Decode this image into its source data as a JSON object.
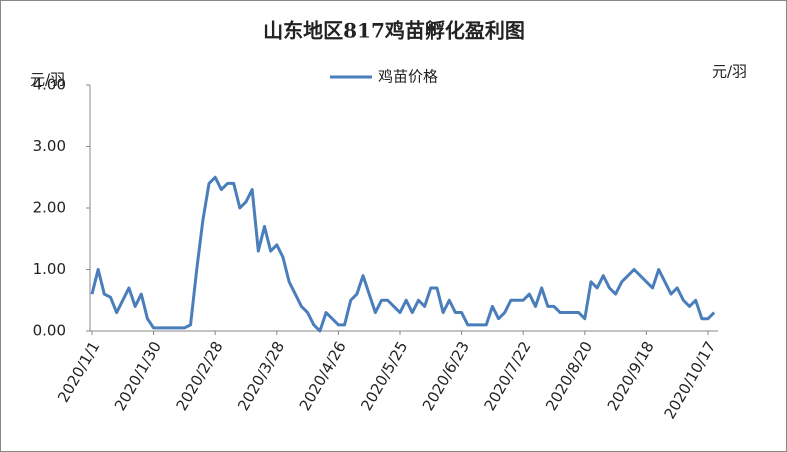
{
  "chart_data": {
    "type": "line",
    "title": "山东地区817鸡苗孵化盈利图",
    "ylabel": "元/羽",
    "y2label": "元/羽",
    "categories": [
      "2020/1/1",
      null,
      null,
      null,
      null,
      null,
      null,
      null,
      null,
      null,
      "2020/1/30",
      null,
      null,
      null,
      null,
      null,
      null,
      null,
      null,
      null,
      "2020/2/28",
      null,
      null,
      null,
      null,
      null,
      null,
      null,
      null,
      null,
      "2020/3/28",
      null,
      null,
      null,
      null,
      null,
      null,
      null,
      null,
      null,
      "2020/4/26",
      null,
      null,
      null,
      null,
      null,
      null,
      null,
      null,
      null,
      "2020/5/25",
      null,
      null,
      null,
      null,
      null,
      null,
      null,
      null,
      null,
      "2020/6/23",
      null,
      null,
      null,
      null,
      null,
      null,
      null,
      null,
      null,
      "2020/7/22",
      null,
      null,
      null,
      null,
      null,
      null,
      null,
      null,
      null,
      "2020/8/20",
      null,
      null,
      null,
      null,
      null,
      null,
      null,
      null,
      null,
      "2020/9/18",
      null,
      null,
      null,
      null,
      null,
      null,
      null,
      null,
      null,
      "2020/10/17",
      null
    ],
    "series": [
      {
        "name": "鸡苗价格",
        "color": "#4a7ebb",
        "values": [
          0.6,
          1.0,
          0.6,
          0.55,
          0.3,
          0.5,
          0.7,
          0.4,
          0.6,
          0.2,
          0.05,
          0.05,
          0.05,
          0.05,
          0.05,
          0.05,
          0.1,
          1.0,
          1.8,
          2.4,
          2.5,
          2.3,
          2.4,
          2.4,
          2.0,
          2.1,
          2.3,
          1.3,
          1.7,
          1.3,
          1.4,
          1.2,
          0.8,
          0.6,
          0.4,
          0.3,
          0.1,
          0.0,
          0.3,
          0.2,
          0.1,
          0.1,
          0.5,
          0.6,
          0.9,
          0.6,
          0.3,
          0.5,
          0.5,
          0.4,
          0.3,
          0.5,
          0.3,
          0.5,
          0.4,
          0.7,
          0.7,
          0.3,
          0.5,
          0.3,
          0.3,
          0.1,
          0.1,
          0.1,
          0.1,
          0.4,
          0.2,
          0.3,
          0.5,
          0.5,
          0.5,
          0.6,
          0.4,
          0.7,
          0.4,
          0.4,
          0.3,
          0.3,
          0.3,
          0.3,
          0.2,
          0.8,
          0.7,
          0.9,
          0.7,
          0.6,
          0.8,
          0.9,
          1.0,
          0.9,
          0.8,
          0.7,
          1.0,
          0.8,
          0.6,
          0.7,
          0.5,
          0.4,
          0.5,
          0.2,
          0.2,
          0.3
        ]
      }
    ],
    "ylim": [
      0,
      4
    ],
    "yticks": [
      {
        "value": 0,
        "label": "0.00"
      },
      {
        "value": 1,
        "label": "1.00"
      },
      {
        "value": 2,
        "label": "2.00"
      },
      {
        "value": 3,
        "label": "3.00"
      },
      {
        "value": 4,
        "label": "4.00"
      }
    ],
    "grid": false,
    "legend": "top"
  }
}
